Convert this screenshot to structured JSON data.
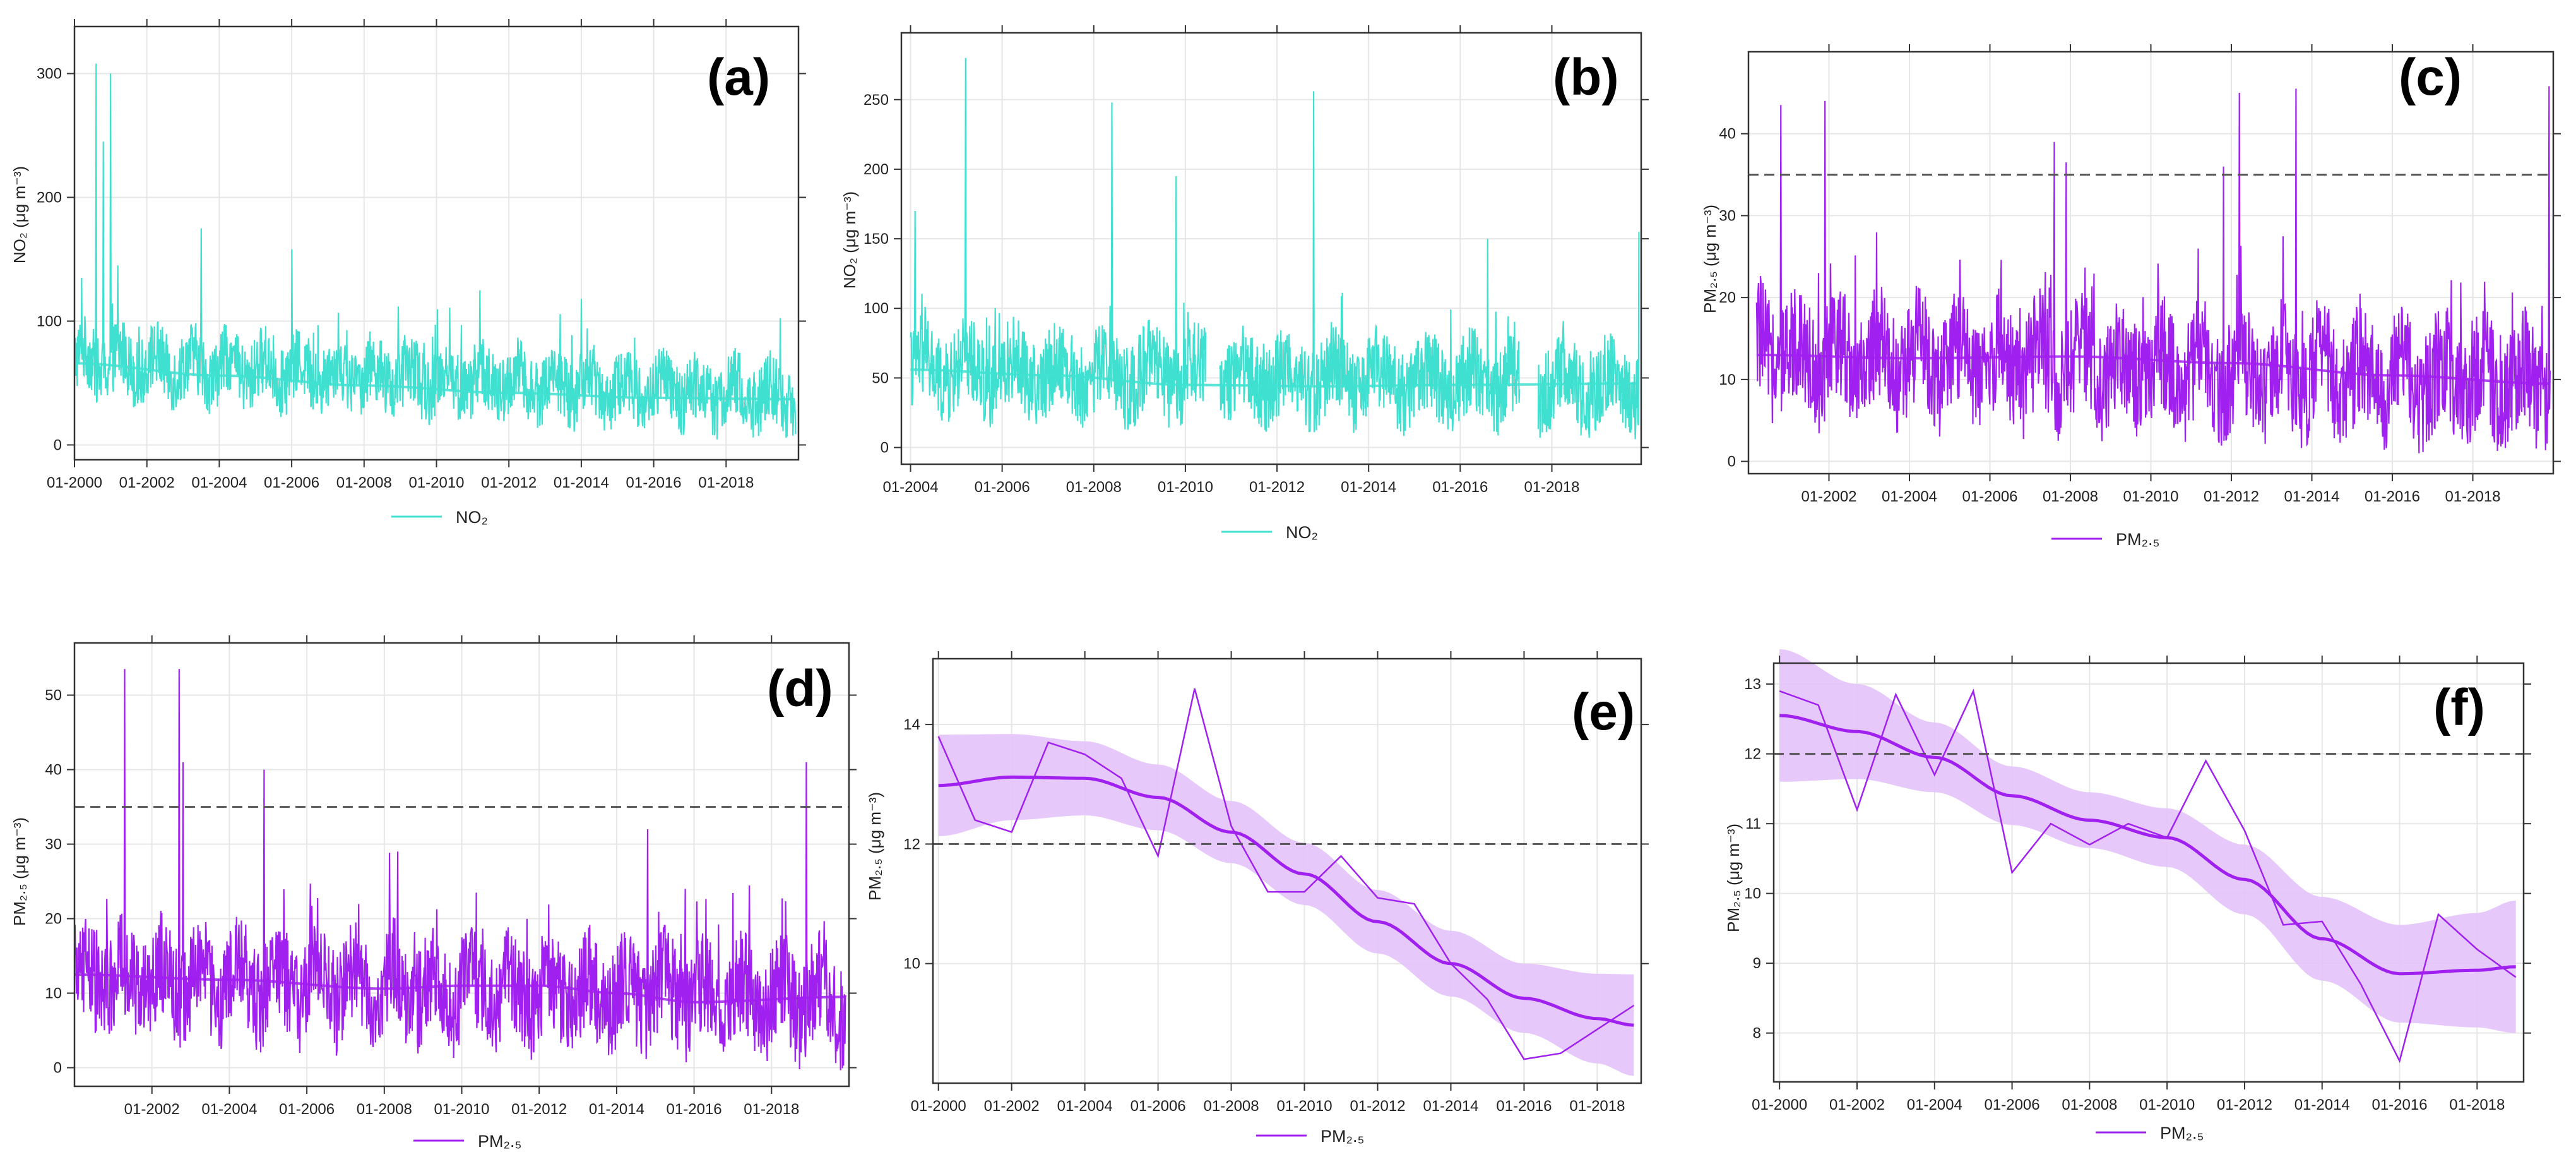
{
  "colors": {
    "no2": "#40E0D0",
    "pm25": "#A020F0",
    "band": "#E3C2F9",
    "grid": "#E6E6E6",
    "frame": "#333333",
    "threshold": "#555555"
  },
  "chart_data": [
    {
      "id": "a",
      "type": "line",
      "panel_label": "(a)",
      "ylabel": "NO₂ (μg m⁻³)",
      "legend": "NO₂",
      "series_color": "no2",
      "xlim": [
        2000.0,
        2020.0
      ],
      "ylim": [
        -12,
        338
      ],
      "yticks": [
        0,
        100,
        200,
        300
      ],
      "yticklabels": [
        "0",
        "100",
        "200",
        "300"
      ],
      "xticks": [
        2000,
        2002,
        2004,
        2006,
        2008,
        2010,
        2012,
        2014,
        2016,
        2018
      ],
      "xticklabels": [
        "01-2000",
        "01-2002",
        "01-2004",
        "01-2006",
        "01-2008",
        "01-2010",
        "01-2012",
        "01-2014",
        "01-2016",
        "01-2018"
      ],
      "hline": null,
      "raw": {
        "start": 2000.0,
        "end": 2019.92,
        "trend_start": 68,
        "trend_end": 38,
        "spread": 28,
        "spikes": [
          [
            2000.2,
            135
          ],
          [
            2000.6,
            308
          ],
          [
            2000.8,
            245
          ],
          [
            2001.0,
            300
          ],
          [
            2001.2,
            145
          ],
          [
            2003.5,
            175
          ],
          [
            2006.0,
            158
          ],
          [
            2011.2,
            125
          ],
          [
            2014.0,
            118
          ]
        ],
        "gaps": []
      },
      "smooth": {
        "x": [
          2000,
          2004,
          2008,
          2012,
          2016,
          2019.9
        ],
        "y": [
          66,
          56,
          48,
          42,
          38,
          37
        ]
      }
    },
    {
      "id": "b",
      "type": "line",
      "panel_label": "(b)",
      "ylabel": "NO₂ (μg m⁻³)",
      "legend": "NO₂",
      "series_color": "no2",
      "xlim": [
        2003.8,
        2019.95
      ],
      "ylim": [
        -12,
        298
      ],
      "yticks": [
        0,
        50,
        100,
        150,
        200,
        250
      ],
      "yticklabels": [
        "0",
        "50",
        "100",
        "150",
        "200",
        "250"
      ],
      "xticks": [
        2004,
        2006,
        2008,
        2010,
        2012,
        2014,
        2016,
        2018
      ],
      "xticklabels": [
        "01-2004",
        "01-2006",
        "01-2008",
        "01-2010",
        "01-2012",
        "01-2014",
        "01-2016",
        "01-2018"
      ],
      "hline": null,
      "raw": {
        "start": 2004.0,
        "end": 2019.9,
        "trend_start": 56,
        "trend_end": 44,
        "spread": 30,
        "spikes": [
          [
            2004.1,
            170
          ],
          [
            2005.2,
            280
          ],
          [
            2008.4,
            248
          ],
          [
            2009.8,
            195
          ],
          [
            2012.8,
            256
          ],
          [
            2016.6,
            150
          ],
          [
            2019.9,
            155
          ]
        ],
        "gaps": [
          [
            2010.45,
            2010.75
          ],
          [
            2017.3,
            2017.7
          ]
        ]
      },
      "smooth": {
        "x": [
          2004,
          2007,
          2010,
          2013,
          2016,
          2019.9
        ],
        "y": [
          56,
          52,
          45,
          44,
          45,
          46
        ]
      }
    },
    {
      "id": "c",
      "type": "line",
      "panel_label": "(c)",
      "ylabel": "PM₂.₅ (μg m⁻³)",
      "legend": "PM₂.₅",
      "series_color": "pm25",
      "xlim": [
        2000.0,
        2020.0
      ],
      "ylim": [
        -1.5,
        50
      ],
      "yticks": [
        0,
        10,
        20,
        30,
        40
      ],
      "yticklabels": [
        "0",
        "10",
        "20",
        "30",
        "40"
      ],
      "xticks": [
        2002,
        2004,
        2006,
        2008,
        2010,
        2012,
        2014,
        2016,
        2018
      ],
      "xticklabels": [
        "01-2002",
        "01-2004",
        "01-2006",
        "01-2008",
        "01-2010",
        "01-2012",
        "01-2014",
        "01-2016",
        "01-2018"
      ],
      "hline": 35,
      "raw": {
        "start": 2000.2,
        "end": 2019.92,
        "trend_start": 13,
        "trend_end": 9.5,
        "spread": 7,
        "spikes": [
          [
            2000.8,
            43.5
          ],
          [
            2001.9,
            44
          ],
          [
            2007.6,
            39
          ],
          [
            2007.9,
            36.5
          ],
          [
            2011.8,
            36
          ],
          [
            2012.2,
            45
          ],
          [
            2013.6,
            45.5
          ],
          [
            2019.9,
            45.8
          ]
        ],
        "gaps": []
      },
      "smooth": {
        "x": [
          2000.2,
          2004,
          2008,
          2012,
          2016,
          2019.9
        ],
        "y": [
          13,
          12.6,
          12.8,
          12,
          10.5,
          9.5
        ]
      }
    },
    {
      "id": "d",
      "type": "line",
      "panel_label": "(d)",
      "ylabel": "PM₂.₅ (μg m⁻³)",
      "legend": "PM₂.₅",
      "series_color": "pm25",
      "xlim": [
        2000.0,
        2020.0
      ],
      "ylim": [
        -2.5,
        57
      ],
      "yticks": [
        0,
        10,
        20,
        30,
        40,
        50
      ],
      "yticklabels": [
        "0",
        "10",
        "20",
        "30",
        "40",
        "50"
      ],
      "xticks": [
        2002,
        2004,
        2006,
        2008,
        2010,
        2012,
        2014,
        2016,
        2018
      ],
      "xticklabels": [
        "01-2002",
        "01-2004",
        "01-2006",
        "01-2008",
        "01-2010",
        "01-2012",
        "01-2014",
        "01-2016",
        "01-2018"
      ],
      "hline": 35,
      "raw": {
        "start": 2000.0,
        "end": 2019.92,
        "trend_start": 12,
        "trend_end": 9,
        "spread": 7,
        "spikes": [
          [
            2001.3,
            53.5
          ],
          [
            2002.7,
            53.5
          ],
          [
            2002.8,
            41
          ],
          [
            2004.9,
            40
          ],
          [
            2014.8,
            32
          ],
          [
            2018.9,
            41
          ]
        ],
        "gaps": []
      },
      "smooth": {
        "x": [
          2000,
          2004,
          2008,
          2010,
          2012,
          2014,
          2016,
          2019.9
        ],
        "y": [
          12.5,
          11.8,
          10.6,
          11,
          11,
          10,
          8.8,
          9.5
        ]
      }
    },
    {
      "id": "e",
      "type": "line",
      "panel_label": "(e)",
      "ylabel": "PM₂.₅ (μg m⁻³)",
      "legend": "PM₂.₅",
      "series_color": "pm25",
      "xlim": [
        1999.85,
        2019.2
      ],
      "ylim": [
        8.0,
        15.1
      ],
      "yticks": [
        10,
        12,
        14
      ],
      "yticklabels": [
        "10",
        "12",
        "14"
      ],
      "xticks": [
        2000,
        2002,
        2004,
        2006,
        2008,
        2010,
        2012,
        2014,
        2016,
        2018
      ],
      "xticklabels": [
        "01-2000",
        "01-2002",
        "01-2004",
        "01-2006",
        "01-2008",
        "01-2010",
        "01-2012",
        "01-2014",
        "01-2016",
        "01-2018"
      ],
      "hline": 12,
      "annual": {
        "x": [
          2000,
          2001,
          2002,
          2003,
          2004,
          2005,
          2006,
          2007,
          2008,
          2009,
          2010,
          2011,
          2012,
          2013,
          2014,
          2015,
          2016,
          2017,
          2018,
          2019
        ],
        "y": [
          13.8,
          12.4,
          12.2,
          13.7,
          13.5,
          13.1,
          11.8,
          14.6,
          12.3,
          11.2,
          11.2,
          11.8,
          11.1,
          11.0,
          10.0,
          9.4,
          8.4,
          8.5,
          8.9,
          9.3
        ]
      },
      "trend": {
        "x": [
          2000,
          2002,
          2004,
          2006,
          2008,
          2010,
          2012,
          2014,
          2016,
          2018,
          2019
        ],
        "y": [
          12.98,
          13.12,
          13.1,
          12.78,
          12.2,
          11.5,
          10.7,
          10.0,
          9.42,
          9.08,
          8.97
        ]
      },
      "band_half": {
        "x": [
          2000,
          2002,
          2004,
          2006,
          2008,
          2010,
          2012,
          2014,
          2016,
          2018,
          2019
        ],
        "h": [
          0.85,
          0.72,
          0.62,
          0.55,
          0.52,
          0.52,
          0.53,
          0.55,
          0.58,
          0.75,
          0.85
        ]
      }
    },
    {
      "id": "f",
      "type": "line",
      "panel_label": "(f)",
      "ylabel": "PM₂.₅ (μg m⁻³)",
      "legend": "PM₂.₅",
      "series_color": "pm25",
      "xlim": [
        1999.85,
        2019.2
      ],
      "ylim": [
        7.3,
        13.3
      ],
      "yticks": [
        8,
        9,
        10,
        11,
        12,
        13
      ],
      "yticklabels": [
        "8",
        "9",
        "10",
        "11",
        "12",
        "13"
      ],
      "xticks": [
        2000,
        2002,
        2004,
        2006,
        2008,
        2010,
        2012,
        2014,
        2016,
        2018
      ],
      "xticklabels": [
        "01-2000",
        "01-2002",
        "01-2004",
        "01-2006",
        "01-2008",
        "01-2010",
        "01-2012",
        "01-2014",
        "01-2016",
        "01-2018"
      ],
      "hline": 12,
      "annual": {
        "x": [
          2000,
          2001,
          2002,
          2003,
          2004,
          2005,
          2006,
          2007,
          2008,
          2009,
          2010,
          2011,
          2012,
          2013,
          2014,
          2015,
          2016,
          2017,
          2018,
          2019
        ],
        "y": [
          12.9,
          12.7,
          11.2,
          12.85,
          11.7,
          12.9,
          10.3,
          11.0,
          10.7,
          11.0,
          10.8,
          11.9,
          10.9,
          9.55,
          9.6,
          8.7,
          7.6,
          9.7,
          9.2,
          8.8
        ]
      },
      "trend": {
        "x": [
          2000,
          2002,
          2004,
          2006,
          2008,
          2010,
          2012,
          2014,
          2016,
          2018,
          2019
        ],
        "y": [
          12.55,
          12.32,
          11.95,
          11.4,
          11.05,
          10.8,
          10.2,
          9.35,
          8.85,
          8.9,
          8.95
        ]
      },
      "band_half": {
        "x": [
          2000,
          2002,
          2004,
          2006,
          2008,
          2010,
          2012,
          2014,
          2016,
          2018,
          2019
        ],
        "h": [
          0.95,
          0.68,
          0.5,
          0.42,
          0.4,
          0.42,
          0.5,
          0.6,
          0.7,
          0.82,
          0.95
        ]
      }
    }
  ]
}
